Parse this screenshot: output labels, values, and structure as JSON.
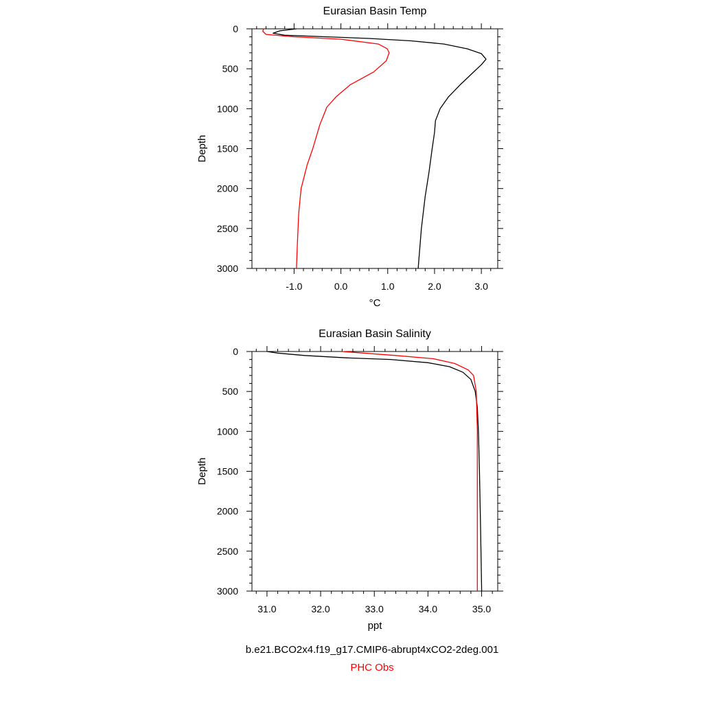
{
  "chart_data": [
    {
      "type": "line",
      "title": "Eurasian Basin Temp",
      "xlabel": "°C",
      "ylabel": "Depth",
      "xlim": [
        -1.9,
        3.35
      ],
      "ylim": [
        3000,
        0
      ],
      "xticks": [
        -1.0,
        0.0,
        1.0,
        2.0,
        3.0
      ],
      "xtick_labels": [
        "-1.0",
        "0.0",
        "1.0",
        "2.0",
        "3.0"
      ],
      "yticks": [
        0,
        500,
        1000,
        1500,
        2000,
        2500,
        3000
      ],
      "ytick_labels": [
        "0",
        "500",
        "1000",
        "1500",
        "2000",
        "2500",
        "3000"
      ],
      "grid": false,
      "series": [
        {
          "name": "b.e21.BCO2x4.f19_g17.CMIP6-abrupt4xCO2-2deg.001",
          "color": "#000000",
          "points": [
            [
              -0.95,
              0
            ],
            [
              -1.3,
              25
            ],
            [
              -1.45,
              55
            ],
            [
              -1.2,
              80
            ],
            [
              -0.3,
              100
            ],
            [
              0.6,
              120
            ],
            [
              1.5,
              150
            ],
            [
              2.2,
              190
            ],
            [
              2.7,
              250
            ],
            [
              3.0,
              310
            ],
            [
              3.1,
              380
            ],
            [
              3.0,
              450
            ],
            [
              2.8,
              560
            ],
            [
              2.55,
              700
            ],
            [
              2.3,
              850
            ],
            [
              2.12,
              1000
            ],
            [
              2.02,
              1150
            ],
            [
              2.0,
              1300
            ],
            [
              1.95,
              1500
            ],
            [
              1.88,
              1800
            ],
            [
              1.8,
              2100
            ],
            [
              1.72,
              2500
            ],
            [
              1.65,
              3000
            ]
          ]
        },
        {
          "name": "PHC Obs",
          "color": "#ff0000",
          "points": [
            [
              -1.65,
              0
            ],
            [
              -1.67,
              30
            ],
            [
              -1.6,
              70
            ],
            [
              -1.0,
              100
            ],
            [
              0.0,
              130
            ],
            [
              0.8,
              190
            ],
            [
              0.99,
              250
            ],
            [
              1.03,
              300
            ],
            [
              0.97,
              400
            ],
            [
              0.7,
              540
            ],
            [
              0.2,
              700
            ],
            [
              -0.1,
              850
            ],
            [
              -0.3,
              980
            ],
            [
              -0.45,
              1200
            ],
            [
              -0.6,
              1500
            ],
            [
              -0.72,
              1700
            ],
            [
              -0.85,
              2000
            ],
            [
              -0.9,
              2300
            ],
            [
              -0.93,
              2700
            ],
            [
              -0.95,
              3000
            ]
          ]
        }
      ]
    },
    {
      "type": "line",
      "title": "Eurasian Basin Salinity",
      "xlabel": "ppt",
      "ylabel": "Depth",
      "xlim": [
        30.72,
        35.3
      ],
      "ylim": [
        3000,
        0
      ],
      "xticks": [
        31.0,
        32.0,
        33.0,
        34.0,
        35.0
      ],
      "xtick_labels": [
        "31.0",
        "32.0",
        "33.0",
        "34.0",
        "35.0"
      ],
      "yticks": [
        0,
        500,
        1000,
        1500,
        2000,
        2500,
        3000
      ],
      "ytick_labels": [
        "0",
        "500",
        "1000",
        "1500",
        "2000",
        "2500",
        "3000"
      ],
      "grid": false,
      "series": [
        {
          "name": "b.e21.BCO2x4.f19_g17.CMIP6-abrupt4xCO2-2deg.001",
          "color": "#000000",
          "points": [
            [
              31.0,
              0
            ],
            [
              31.2,
              20
            ],
            [
              31.7,
              50
            ],
            [
              32.5,
              80
            ],
            [
              33.3,
              100
            ],
            [
              34.0,
              140
            ],
            [
              34.4,
              190
            ],
            [
              34.65,
              260
            ],
            [
              34.8,
              350
            ],
            [
              34.88,
              500
            ],
            [
              34.92,
              700
            ],
            [
              34.94,
              1000
            ],
            [
              34.96,
              1500
            ],
            [
              34.98,
              2200
            ],
            [
              35.0,
              3000
            ]
          ]
        },
        {
          "name": "PHC Obs",
          "color": "#ff0000",
          "points": [
            [
              32.4,
              0
            ],
            [
              32.8,
              20
            ],
            [
              33.4,
              50
            ],
            [
              34.1,
              90
            ],
            [
              34.5,
              150
            ],
            [
              34.75,
              230
            ],
            [
              34.85,
              300
            ],
            [
              34.9,
              500
            ],
            [
              34.92,
              1000
            ],
            [
              34.92,
              2000
            ],
            [
              34.92,
              3000
            ]
          ]
        }
      ]
    }
  ],
  "legend": {
    "model_label": "b.e21.BCO2x4.f19_g17.CMIP6-abrupt4xCO2-2deg.001",
    "obs_label": "PHC Obs",
    "model_color": "#000000",
    "obs_color": "#ff0000"
  }
}
